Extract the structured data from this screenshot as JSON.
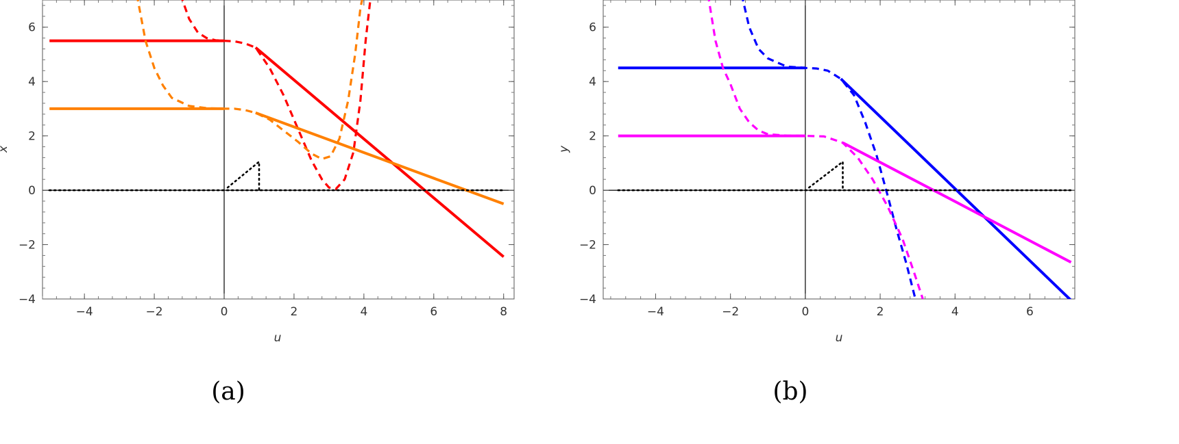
{
  "chart_data": [
    {
      "type": "line",
      "caption": "(a)",
      "xlabel": "u",
      "ylabel": "x",
      "xlim": [
        -5.2,
        8.3
      ],
      "ylim": [
        -4,
        7
      ],
      "xticks": [
        -4,
        -2,
        0,
        2,
        4,
        6,
        8
      ],
      "yticks": [
        -4,
        -2,
        0,
        2,
        4,
        6
      ],
      "grid": false,
      "series": [
        {
          "color": "#ff0000",
          "style": "solid",
          "points": [
            [
              -5,
              5.5
            ],
            [
              0,
              5.5
            ]
          ]
        },
        {
          "color": "#ff0000",
          "style": "solid",
          "points": [
            [
              0.9,
              5.25
            ],
            [
              8,
              -2.45
            ]
          ]
        },
        {
          "color": "#ff0000",
          "style": "dashed",
          "points": [
            [
              -1.25,
              7.2
            ],
            [
              -1.0,
              6.3
            ],
            [
              -0.75,
              5.8
            ],
            [
              -0.5,
              5.6
            ],
            [
              -0.25,
              5.52
            ],
            [
              0,
              5.5
            ],
            [
              0.3,
              5.48
            ],
            [
              0.6,
              5.4
            ],
            [
              0.9,
              5.25
            ],
            [
              1.3,
              4.5
            ],
            [
              1.7,
              3.5
            ],
            [
              2.1,
              2.3
            ],
            [
              2.5,
              1.1
            ],
            [
              2.8,
              0.4
            ],
            [
              3.0,
              0.1
            ],
            [
              3.2,
              0.05
            ],
            [
              3.45,
              0.4
            ],
            [
              3.7,
              1.4
            ],
            [
              3.9,
              3.3
            ],
            [
              4.05,
              5.5
            ],
            [
              4.2,
              7.2
            ]
          ]
        },
        {
          "color": "#ff8000",
          "style": "solid",
          "points": [
            [
              -5,
              3.0
            ],
            [
              0,
              3.0
            ]
          ]
        },
        {
          "color": "#ff8000",
          "style": "solid",
          "points": [
            [
              0.9,
              2.85
            ],
            [
              8,
              -0.5
            ]
          ]
        },
        {
          "color": "#ff8000",
          "style": "dashed",
          "points": [
            [
              -2.5,
              7.2
            ],
            [
              -2.25,
              5.5
            ],
            [
              -2.0,
              4.5
            ],
            [
              -1.75,
              3.85
            ],
            [
              -1.5,
              3.4
            ],
            [
              -1.0,
              3.1
            ],
            [
              -0.5,
              3.02
            ],
            [
              0,
              3.0
            ],
            [
              0.3,
              3.0
            ],
            [
              0.6,
              2.95
            ],
            [
              0.9,
              2.85
            ],
            [
              1.3,
              2.6
            ],
            [
              1.7,
              2.2
            ],
            [
              2.1,
              1.8
            ],
            [
              2.5,
              1.35
            ],
            [
              2.8,
              1.15
            ],
            [
              3.05,
              1.25
            ],
            [
              3.3,
              1.9
            ],
            [
              3.55,
              3.3
            ],
            [
              3.75,
              5.0
            ],
            [
              3.9,
              6.7
            ],
            [
              3.98,
              7.2
            ]
          ]
        },
        {
          "color": "#000000",
          "style": "dotted",
          "points": [
            [
              0.1,
              0.1
            ],
            [
              1.0,
              1.05
            ],
            [
              1.0,
              0.0
            ]
          ]
        },
        {
          "color": "#000000",
          "style": "dotted",
          "points": [
            [
              -5,
              0
            ],
            [
              8,
              0
            ]
          ]
        }
      ]
    },
    {
      "type": "line",
      "caption": "(b)",
      "xlabel": "u",
      "ylabel": "y",
      "xlim": [
        -5.4,
        7.2
      ],
      "ylim": [
        -4,
        7
      ],
      "xticks": [
        -4,
        -2,
        0,
        2,
        4,
        6
      ],
      "yticks": [
        -4,
        -2,
        0,
        2,
        4,
        6
      ],
      "grid": false,
      "series": [
        {
          "color": "#0000ff",
          "style": "solid",
          "points": [
            [
              -5,
              4.5
            ],
            [
              0,
              4.5
            ]
          ]
        },
        {
          "color": "#0000ff",
          "style": "solid",
          "points": [
            [
              0.95,
              4.1
            ],
            [
              7.1,
              -4.05
            ]
          ]
        },
        {
          "color": "#0000ff",
          "style": "dashed",
          "points": [
            [
              -1.7,
              7.2
            ],
            [
              -1.5,
              6.0
            ],
            [
              -1.25,
              5.2
            ],
            [
              -1.0,
              4.85
            ],
            [
              -0.5,
              4.55
            ],
            [
              0,
              4.5
            ],
            [
              0.3,
              4.48
            ],
            [
              0.6,
              4.4
            ],
            [
              0.95,
              4.1
            ],
            [
              1.3,
              3.5
            ],
            [
              1.6,
              2.5
            ],
            [
              1.9,
              1.3
            ],
            [
              2.2,
              -0.2
            ],
            [
              2.45,
              -1.5
            ],
            [
              2.7,
              -2.7
            ],
            [
              2.95,
              -4.05
            ]
          ]
        },
        {
          "color": "#ff00ff",
          "style": "solid",
          "points": [
            [
              -5,
              2.0
            ],
            [
              0,
              2.0
            ]
          ]
        },
        {
          "color": "#ff00ff",
          "style": "solid",
          "points": [
            [
              1.0,
              1.75
            ],
            [
              7.1,
              -2.65
            ]
          ]
        },
        {
          "color": "#ff00ff",
          "style": "dashed",
          "points": [
            [
              -2.6,
              7.2
            ],
            [
              -2.4,
              5.5
            ],
            [
              -2.2,
              4.5
            ],
            [
              -2.0,
              3.9
            ],
            [
              -1.75,
              3.0
            ],
            [
              -1.5,
              2.5
            ],
            [
              -1.25,
              2.2
            ],
            [
              -1.0,
              2.06
            ],
            [
              -0.5,
              2.01
            ],
            [
              0,
              2.0
            ],
            [
              0.5,
              1.98
            ],
            [
              1.0,
              1.75
            ],
            [
              1.4,
              1.2
            ],
            [
              1.8,
              0.4
            ],
            [
              2.2,
              -0.6
            ],
            [
              2.6,
              -1.8
            ],
            [
              2.9,
              -3.0
            ],
            [
              3.15,
              -4.05
            ]
          ]
        },
        {
          "color": "#000000",
          "style": "dotted",
          "points": [
            [
              0.1,
              0.1
            ],
            [
              1.0,
              1.05
            ],
            [
              1.0,
              0.0
            ]
          ]
        },
        {
          "color": "#000000",
          "style": "dotted",
          "points": [
            [
              -5,
              0
            ],
            [
              7.1,
              0
            ]
          ]
        }
      ]
    }
  ]
}
